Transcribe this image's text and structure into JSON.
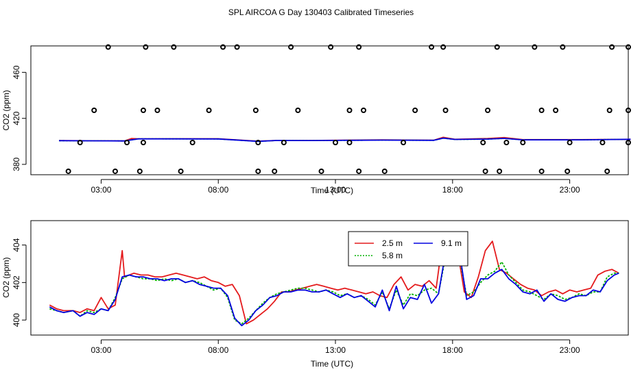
{
  "title": "SPL AIRCOA G  Day 130403  Calibrated Timeseries",
  "colors": {
    "red": "#e41a1c",
    "green": "#00b000",
    "blue": "#0000e0",
    "black": "#000000"
  },
  "chart_data": [
    {
      "type": "line",
      "name": "top-panel",
      "xlabel": "Time (UTC)",
      "ylabel": "CO2 (ppm)",
      "xlim": [
        0,
        25.5
      ],
      "ylim": [
        371,
        483
      ],
      "xticks": [
        3,
        8,
        13,
        18,
        23
      ],
      "xtick_labels": [
        "03:00",
        "08:00",
        "13:00",
        "18:00",
        "23:00"
      ],
      "yticks": [
        380,
        420,
        460
      ],
      "ytick_labels": [
        "380",
        "420",
        "460"
      ],
      "markers": [
        {
          "x": 1.6,
          "y": 374
        },
        {
          "x": 3.6,
          "y": 374
        },
        {
          "x": 4.65,
          "y": 374
        },
        {
          "x": 6.4,
          "y": 374
        },
        {
          "x": 9.7,
          "y": 374
        },
        {
          "x": 10.4,
          "y": 374
        },
        {
          "x": 12.4,
          "y": 374
        },
        {
          "x": 14.0,
          "y": 374
        },
        {
          "x": 15.1,
          "y": 374
        },
        {
          "x": 19.4,
          "y": 374
        },
        {
          "x": 20.0,
          "y": 374
        },
        {
          "x": 21.8,
          "y": 374
        },
        {
          "x": 22.9,
          "y": 374
        },
        {
          "x": 24.6,
          "y": 374
        },
        {
          "x": 2.1,
          "y": 399
        },
        {
          "x": 4.1,
          "y": 399
        },
        {
          "x": 4.8,
          "y": 399
        },
        {
          "x": 6.9,
          "y": 399
        },
        {
          "x": 9.7,
          "y": 399
        },
        {
          "x": 10.8,
          "y": 399
        },
        {
          "x": 13.0,
          "y": 399
        },
        {
          "x": 13.6,
          "y": 399
        },
        {
          "x": 15.9,
          "y": 399
        },
        {
          "x": 19.3,
          "y": 399
        },
        {
          "x": 20.3,
          "y": 399
        },
        {
          "x": 21.0,
          "y": 399
        },
        {
          "x": 23.0,
          "y": 399
        },
        {
          "x": 24.4,
          "y": 399
        },
        {
          "x": 25.5,
          "y": 399
        },
        {
          "x": 2.7,
          "y": 427
        },
        {
          "x": 4.8,
          "y": 427
        },
        {
          "x": 5.4,
          "y": 427
        },
        {
          "x": 7.6,
          "y": 427
        },
        {
          "x": 9.6,
          "y": 427
        },
        {
          "x": 11.4,
          "y": 427
        },
        {
          "x": 13.6,
          "y": 427
        },
        {
          "x": 14.2,
          "y": 427
        },
        {
          "x": 16.4,
          "y": 427
        },
        {
          "x": 17.7,
          "y": 427
        },
        {
          "x": 19.5,
          "y": 427
        },
        {
          "x": 21.8,
          "y": 427
        },
        {
          "x": 22.4,
          "y": 427
        },
        {
          "x": 24.7,
          "y": 427
        },
        {
          "x": 25.5,
          "y": 427
        },
        {
          "x": 3.3,
          "y": 482
        },
        {
          "x": 4.9,
          "y": 482
        },
        {
          "x": 6.1,
          "y": 482
        },
        {
          "x": 8.2,
          "y": 482
        },
        {
          "x": 8.8,
          "y": 482
        },
        {
          "x": 11.1,
          "y": 482
        },
        {
          "x": 12.8,
          "y": 482
        },
        {
          "x": 14.0,
          "y": 482
        },
        {
          "x": 17.1,
          "y": 482
        },
        {
          "x": 17.6,
          "y": 482
        },
        {
          "x": 19.9,
          "y": 482
        },
        {
          "x": 21.5,
          "y": 482
        },
        {
          "x": 22.7,
          "y": 482
        },
        {
          "x": 24.8,
          "y": 482
        },
        {
          "x": 25.5,
          "y": 482
        }
      ],
      "series": [
        {
          "name": "2.5 m",
          "color": "#e41a1c",
          "x": [
            1.2,
            4.0,
            4.3,
            4.6,
            8.0,
            9.7,
            10.5,
            12.0,
            15.0,
            17.2,
            17.6,
            18.1,
            19.5,
            20.2,
            21.0,
            23.5,
            25.6
          ],
          "values": [
            400.7,
            400.4,
            402.5,
            402.2,
            402.3,
            400.2,
            400.8,
            400.8,
            401.3,
            401.0,
            403.5,
            401.8,
            402.5,
            403.3,
            401.5,
            401.5,
            401.8
          ]
        },
        {
          "name": "5.8 m",
          "color": "#00b000",
          "x": [
            1.2,
            4.0,
            4.6,
            8.0,
            9.7,
            10.5,
            12.0,
            15.0,
            17.2,
            17.6,
            18.1,
            19.5,
            20.2,
            21.0,
            23.5,
            25.6
          ],
          "values": [
            400.6,
            400.4,
            402.2,
            402.1,
            400.0,
            400.8,
            400.7,
            401.1,
            400.9,
            402.8,
            401.7,
            402.0,
            402.6,
            401.3,
            401.3,
            401.8
          ]
        },
        {
          "name": "9.1 m",
          "color": "#0000e0",
          "x": [
            1.2,
            4.0,
            4.6,
            8.0,
            9.7,
            10.5,
            12.0,
            15.0,
            17.2,
            17.6,
            18.1,
            19.5,
            20.2,
            21.0,
            23.5,
            25.6
          ],
          "values": [
            400.6,
            400.4,
            402.2,
            402.1,
            400.0,
            400.8,
            400.7,
            401.1,
            400.9,
            402.8,
            401.7,
            402.0,
            402.6,
            401.3,
            401.3,
            401.8
          ]
        }
      ]
    },
    {
      "type": "line",
      "name": "bottom-panel",
      "xlabel": "Time (UTC)",
      "ylabel": "CO2 (ppm)",
      "xlim": [
        0,
        25.5
      ],
      "ylim": [
        399.2,
        405.3
      ],
      "xticks": [
        3,
        8,
        13,
        18,
        23
      ],
      "xtick_labels": [
        "03:00",
        "08:00",
        "13:00",
        "18:00",
        "23:00"
      ],
      "yticks": [
        400,
        402,
        404
      ],
      "ytick_labels": [
        "400",
        "402",
        "404"
      ],
      "legend": {
        "position": "top-right-center",
        "entries": [
          "2.5 m",
          "5.8 m",
          "9.1 m"
        ]
      },
      "series": [
        {
          "name": "2.5 m",
          "color": "#e41a1c",
          "x": [
            0.8,
            1.1,
            1.4,
            1.8,
            2.1,
            2.4,
            2.7,
            3.0,
            3.3,
            3.6,
            3.9,
            4.0,
            4.2,
            4.4,
            4.7,
            5.0,
            5.3,
            5.6,
            5.9,
            6.2,
            6.5,
            6.8,
            7.1,
            7.4,
            7.7,
            8.0,
            8.3,
            8.6,
            8.9,
            9.2,
            9.5,
            9.8,
            10.1,
            10.4,
            10.7,
            11.0,
            11.3,
            11.6,
            11.9,
            12.2,
            12.5,
            12.8,
            13.1,
            13.4,
            13.7,
            14.0,
            14.3,
            14.6,
            14.9,
            15.2,
            15.5,
            15.8,
            16.1,
            16.4,
            16.7,
            17.0,
            17.3,
            17.6,
            17.9,
            18.2,
            18.5,
            18.8,
            19.1,
            19.4,
            19.7,
            20.0,
            20.3,
            20.6,
            20.9,
            21.2,
            21.5,
            21.8,
            22.1,
            22.4,
            22.7,
            23.0,
            23.3,
            23.6,
            23.9,
            24.2,
            24.5,
            24.8,
            25.1
          ],
          "values": [
            400.8,
            400.6,
            400.5,
            400.5,
            400.4,
            400.6,
            400.5,
            401.2,
            400.6,
            400.8,
            403.7,
            402.3,
            402.4,
            402.5,
            402.4,
            402.4,
            402.3,
            402.3,
            402.4,
            402.5,
            402.4,
            402.3,
            402.2,
            402.3,
            402.1,
            402.0,
            401.8,
            401.9,
            401.3,
            399.8,
            400.0,
            400.3,
            400.6,
            401.0,
            401.5,
            401.5,
            401.6,
            401.7,
            401.8,
            401.9,
            401.8,
            401.7,
            401.6,
            401.7,
            401.6,
            401.5,
            401.4,
            401.5,
            401.3,
            401.2,
            401.9,
            402.3,
            401.6,
            401.9,
            401.8,
            402.1,
            401.7,
            404.5,
            403.1,
            403.8,
            401.5,
            401.2,
            402.3,
            403.7,
            404.2,
            402.7,
            402.5,
            402.2,
            401.9,
            401.7,
            401.6,
            401.3,
            401.5,
            401.6,
            401.4,
            401.6,
            401.5,
            401.6,
            401.7,
            402.4,
            402.6,
            402.7,
            402.5
          ]
        },
        {
          "name": "5.8 m",
          "color": "#00b000",
          "x": [
            0.8,
            1.1,
            1.4,
            1.8,
            2.1,
            2.4,
            2.7,
            3.0,
            3.3,
            3.6,
            3.9,
            4.2,
            4.5,
            4.8,
            5.1,
            5.4,
            5.7,
            6.0,
            6.3,
            6.6,
            6.9,
            7.2,
            7.5,
            7.8,
            8.1,
            8.4,
            8.7,
            9.0,
            9.3,
            9.6,
            9.9,
            10.2,
            10.5,
            10.8,
            11.1,
            11.4,
            11.7,
            12.0,
            12.3,
            12.6,
            12.9,
            13.2,
            13.5,
            13.8,
            14.1,
            14.4,
            14.7,
            15.0,
            15.3,
            15.6,
            15.9,
            16.2,
            16.5,
            16.8,
            17.1,
            17.4,
            17.7,
            18.0,
            18.3,
            18.6,
            18.9,
            19.2,
            19.5,
            19.8,
            20.1,
            20.4,
            20.7,
            21.0,
            21.3,
            21.6,
            21.9,
            22.2,
            22.5,
            22.8,
            23.1,
            23.4,
            23.7,
            24.0,
            24.3,
            24.6,
            24.9,
            25.1
          ],
          "values": [
            400.6,
            400.5,
            400.4,
            400.5,
            400.2,
            400.5,
            400.4,
            400.6,
            400.5,
            401.2,
            402.2,
            402.4,
            402.3,
            402.2,
            402.2,
            402.1,
            402.2,
            402.1,
            402.2,
            402.0,
            402.1,
            402.0,
            401.8,
            401.6,
            401.7,
            401.2,
            400.0,
            399.8,
            400.1,
            400.5,
            400.9,
            401.2,
            401.4,
            401.5,
            401.6,
            401.7,
            401.7,
            401.6,
            401.5,
            401.6,
            401.5,
            401.3,
            401.4,
            401.2,
            401.3,
            401.1,
            400.8,
            401.5,
            400.6,
            401.6,
            400.8,
            401.4,
            401.3,
            401.6,
            401.7,
            401.4,
            403.4,
            403.6,
            403.3,
            401.3,
            401.5,
            402.0,
            402.4,
            402.6,
            403.1,
            402.4,
            402.0,
            401.6,
            401.5,
            401.3,
            401.1,
            401.4,
            401.3,
            401.1,
            401.2,
            401.4,
            401.3,
            401.5,
            401.5,
            402.3,
            402.5,
            402.5
          ]
        },
        {
          "name": "9.1 m",
          "color": "#0000e0",
          "x": [
            0.8,
            1.1,
            1.4,
            1.8,
            2.1,
            2.4,
            2.7,
            3.0,
            3.3,
            3.6,
            3.9,
            4.2,
            4.5,
            4.8,
            5.1,
            5.4,
            5.7,
            6.0,
            6.3,
            6.6,
            6.9,
            7.2,
            7.5,
            7.8,
            8.1,
            8.4,
            8.7,
            9.0,
            9.3,
            9.6,
            9.9,
            10.2,
            10.5,
            10.8,
            11.1,
            11.4,
            11.7,
            12.0,
            12.3,
            12.6,
            12.9,
            13.2,
            13.5,
            13.8,
            14.1,
            14.4,
            14.7,
            15.0,
            15.3,
            15.6,
            15.9,
            16.2,
            16.5,
            16.8,
            17.1,
            17.4,
            17.7,
            18.0,
            18.3,
            18.6,
            18.9,
            19.2,
            19.5,
            19.8,
            20.1,
            20.4,
            20.7,
            21.0,
            21.3,
            21.6,
            21.9,
            22.2,
            22.5,
            22.8,
            23.1,
            23.4,
            23.7,
            24.0,
            24.3,
            24.6,
            24.9,
            25.1
          ],
          "values": [
            400.7,
            400.5,
            400.4,
            400.5,
            400.2,
            400.4,
            400.3,
            400.6,
            400.5,
            401.1,
            402.3,
            402.4,
            402.3,
            402.3,
            402.2,
            402.2,
            402.1,
            402.2,
            402.2,
            402.0,
            402.1,
            401.9,
            401.8,
            401.7,
            401.7,
            401.3,
            400.1,
            399.7,
            400.0,
            400.5,
            400.8,
            401.2,
            401.3,
            401.5,
            401.5,
            401.6,
            401.6,
            401.5,
            401.5,
            401.6,
            401.4,
            401.2,
            401.4,
            401.2,
            401.3,
            401.0,
            400.7,
            401.6,
            400.5,
            401.8,
            400.6,
            401.2,
            401.1,
            401.9,
            400.9,
            401.4,
            403.6,
            403.8,
            403.6,
            401.1,
            401.3,
            402.2,
            402.2,
            402.5,
            402.7,
            402.2,
            401.9,
            401.5,
            401.4,
            401.6,
            401.0,
            401.4,
            401.1,
            401.0,
            401.2,
            401.3,
            401.3,
            401.6,
            401.5,
            402.1,
            402.4,
            402.5
          ]
        }
      ]
    }
  ]
}
